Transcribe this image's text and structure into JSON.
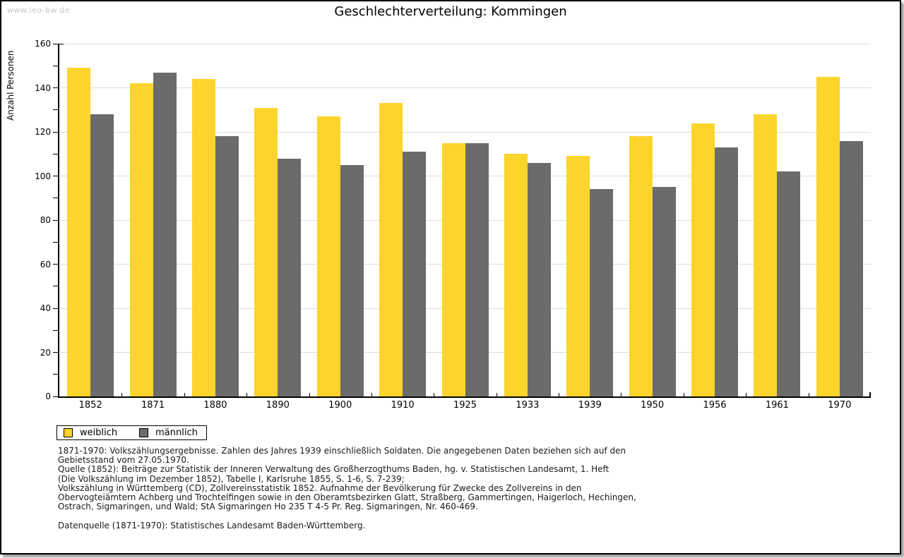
{
  "watermark": "www.leo-bw.de",
  "chart_data": {
    "type": "bar",
    "title": "Geschlechterverteilung: Kommingen",
    "xlabel": "",
    "ylabel": "Anzahl Personen",
    "ylim": [
      0,
      160
    ],
    "ytick_step": 20,
    "yminor_step": 10,
    "grid": true,
    "legend_position": "bottom-left",
    "categories": [
      "1852",
      "1871",
      "1880",
      "1890",
      "1900",
      "1910",
      "1925",
      "1933",
      "1939",
      "1950",
      "1956",
      "1961",
      "1970"
    ],
    "series": [
      {
        "name": "weiblich",
        "color": "#fcd42c",
        "values": [
          149,
          142,
          144,
          131,
          127,
          133,
          115,
          110,
          109,
          118,
          124,
          128,
          145
        ]
      },
      {
        "name": "männlich",
        "color": "#6b6b6b",
        "values": [
          128,
          147,
          118,
          108,
          105,
          111,
          115,
          106,
          94,
          95,
          113,
          102,
          116
        ]
      }
    ]
  },
  "footnotes": {
    "lines": [
      "1871-1970: Volkszählungsergebnisse. Zahlen des Jahres 1939 einschließlich Soldaten. Die angegebenen Daten beziehen sich auf den",
      "Gebietsstand vom 27.05.1970.",
      "Quelle (1852): Beiträge zur Statistik der Inneren Verwaltung des Großherzogthums Baden, hg. v. Statistischen Landesamt, 1. Heft",
      "(Die Volkszählung im Dezember 1852), Tabelle I, Karlsruhe 1855, S. 1-6, S. 7-239;",
      "Volkszählung in Württemberg (CD), Zollvereinsstatistik 1852. Aufnahme der Bevölkerung für Zwecke des Zollvereins in den",
      "Obervogteiämtern Achberg und Trochtelfingen sowie in den Oberamtsbezirken Glatt, Straßberg, Gammertingen, Haigerloch, Hechingen,",
      "Ostrach, Sigmaringen, und Wald; StA Sigmaringen Ho 235 T 4-5 Pr. Reg. Sigmaringen, Nr. 460-469.",
      "",
      "Datenquelle (1871-1970): Statistisches Landesamt Baden-Württemberg."
    ]
  },
  "colors": {
    "grid": "#dcdcdc",
    "axis": "#000000",
    "watermark": "#c6c6c6",
    "text": "#1a1a1a"
  }
}
